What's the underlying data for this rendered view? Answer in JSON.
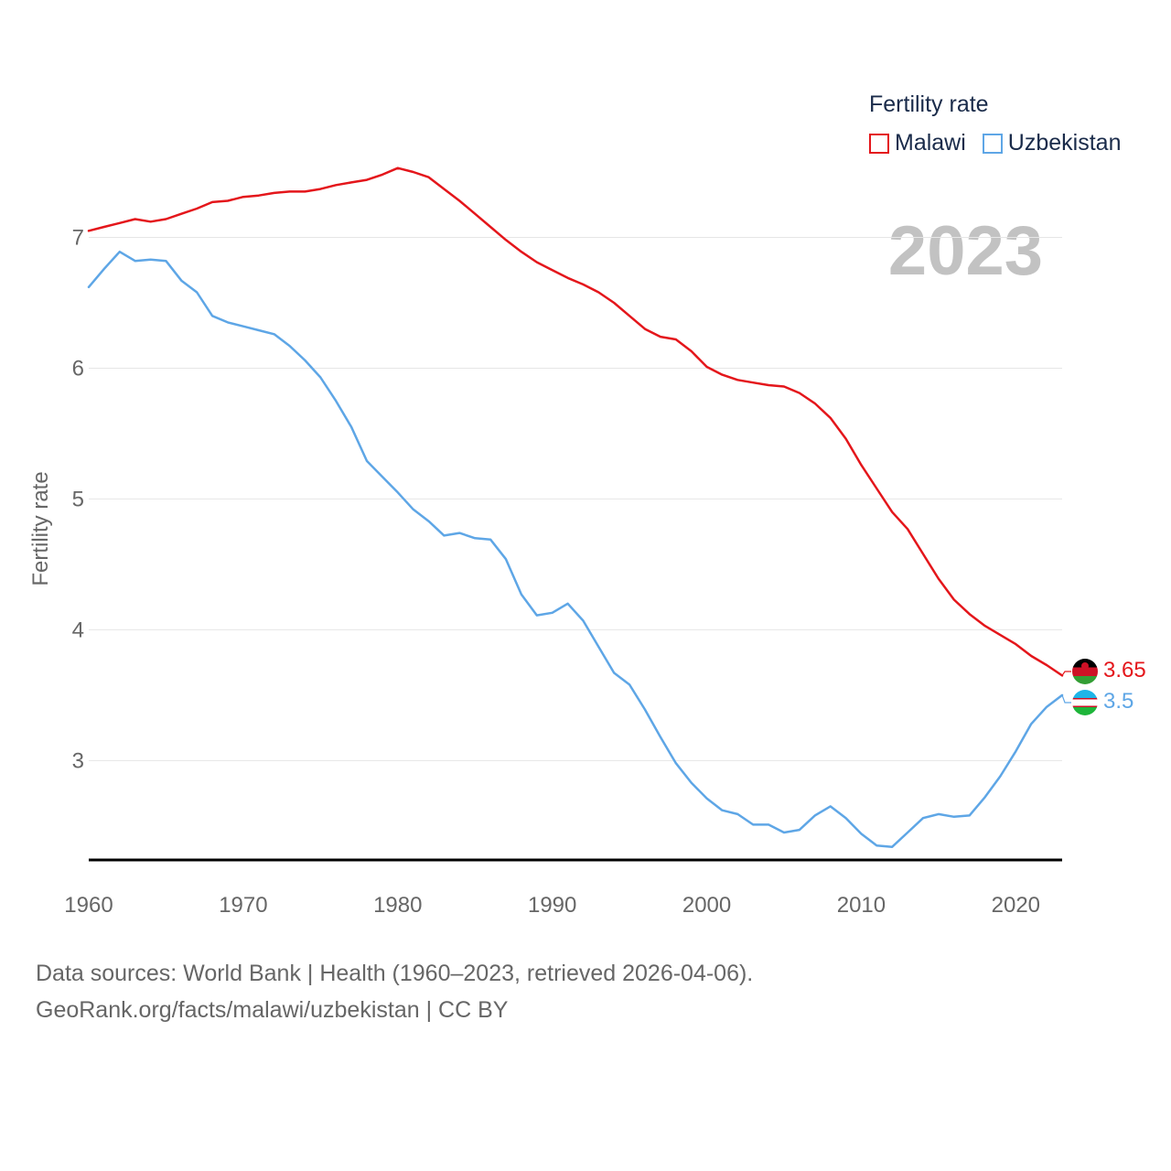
{
  "legend": {
    "title": "Fertility rate",
    "items": [
      {
        "label": "Malawi",
        "color": "#e4161b"
      },
      {
        "label": "Uzbekistan",
        "color": "#5ea6e6"
      }
    ]
  },
  "year_watermark": "2023",
  "footer": {
    "line1": "Data sources: World Bank | Health (1960–2023, retrieved 2026-04-06).",
    "line2": "GeoRank.org/facts/malawi/uzbekistan | CC BY"
  },
  "chart_data": {
    "type": "line",
    "title": "Fertility rate",
    "xlabel": "",
    "ylabel": "Fertility rate",
    "xlim": [
      1960,
      2023
    ],
    "ylim": [
      2.1,
      7.5
    ],
    "grid": true,
    "legend_position": "top-right",
    "x_ticks": [
      1960,
      1970,
      1980,
      1990,
      2000,
      2010,
      2020
    ],
    "y_ticks": [
      3,
      4,
      5,
      6,
      7
    ],
    "x": [
      1960,
      1961,
      1962,
      1963,
      1964,
      1965,
      1966,
      1967,
      1968,
      1969,
      1970,
      1971,
      1972,
      1973,
      1974,
      1975,
      1976,
      1977,
      1978,
      1979,
      1980,
      1981,
      1982,
      1983,
      1984,
      1985,
      1986,
      1987,
      1988,
      1989,
      1990,
      1991,
      1992,
      1993,
      1994,
      1995,
      1996,
      1997,
      1998,
      1999,
      2000,
      2001,
      2002,
      2003,
      2004,
      2005,
      2006,
      2007,
      2008,
      2009,
      2010,
      2011,
      2012,
      2013,
      2014,
      2015,
      2016,
      2017,
      2018,
      2019,
      2020,
      2021,
      2022,
      2023
    ],
    "series": [
      {
        "name": "Malawi",
        "color": "#e4161b",
        "end_label": "3.65",
        "values": [
          7.05,
          7.08,
          7.11,
          7.14,
          7.12,
          7.14,
          7.18,
          7.22,
          7.27,
          7.28,
          7.31,
          7.32,
          7.34,
          7.35,
          7.35,
          7.37,
          7.4,
          7.42,
          7.44,
          7.48,
          7.53,
          7.5,
          7.46,
          7.37,
          7.28,
          7.18,
          7.08,
          6.98,
          6.89,
          6.81,
          6.75,
          6.69,
          6.64,
          6.58,
          6.5,
          6.4,
          6.3,
          6.24,
          6.22,
          6.13,
          6.01,
          5.95,
          5.91,
          5.89,
          5.87,
          5.86,
          5.81,
          5.73,
          5.62,
          5.46,
          5.26,
          5.08,
          4.9,
          4.77,
          4.58,
          4.39,
          4.23,
          4.12,
          4.03,
          3.96,
          3.89,
          3.8,
          3.73,
          3.65
        ]
      },
      {
        "name": "Uzbekistan",
        "color": "#5ea6e6",
        "end_label": "3.5",
        "values": [
          6.62,
          6.76,
          6.89,
          6.82,
          6.83,
          6.82,
          6.67,
          6.58,
          6.4,
          6.35,
          6.32,
          6.29,
          6.26,
          6.17,
          6.06,
          5.93,
          5.75,
          5.55,
          5.29,
          5.17,
          5.05,
          4.92,
          4.83,
          4.72,
          4.74,
          4.7,
          4.69,
          4.54,
          4.27,
          4.11,
          4.13,
          4.2,
          4.07,
          3.87,
          3.67,
          3.58,
          3.39,
          3.18,
          2.98,
          2.83,
          2.71,
          2.62,
          2.59,
          2.51,
          2.51,
          2.45,
          2.47,
          2.58,
          2.65,
          2.56,
          2.44,
          2.35,
          2.34,
          2.45,
          2.56,
          2.59,
          2.57,
          2.58,
          2.72,
          2.88,
          3.07,
          3.28,
          3.41,
          3.5
        ]
      }
    ]
  }
}
